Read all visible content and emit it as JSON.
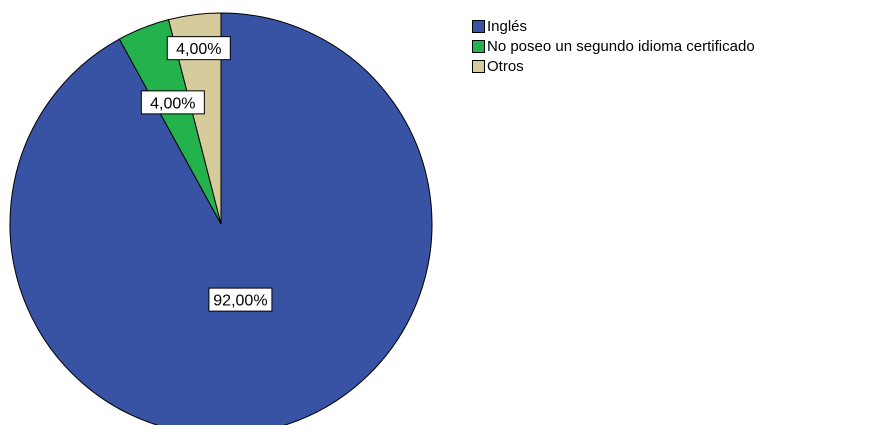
{
  "chart_data": {
    "type": "pie",
    "title": "",
    "categories": [
      "Inglés",
      "No poseo un segundo idioma certificado",
      "Otros"
    ],
    "values": [
      92.0,
      4.0,
      4.0
    ],
    "data_labels": [
      "92,00%",
      "4,00%",
      "4,00%"
    ],
    "colors": [
      "#3953a4",
      "#24b24d",
      "#d6cb9c"
    ],
    "legend_position": "top-right"
  }
}
